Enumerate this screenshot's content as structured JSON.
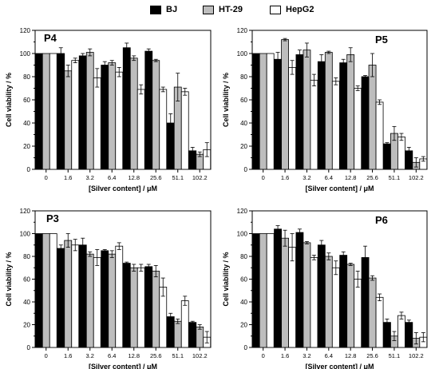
{
  "legend": [
    {
      "name": "BJ",
      "color": "#000000"
    },
    {
      "name": "HT-29",
      "color": "#bdbdbd"
    },
    {
      "name": "HepG2",
      "color": "#ffffff"
    }
  ],
  "chart_data": [
    {
      "type": "bar",
      "title": "P4",
      "xlabel": "[Silver content]  /  μM",
      "ylabel": "Cell viability  /  %",
      "ylim": [
        0,
        120
      ],
      "yticks": [
        0,
        20,
        40,
        60,
        80,
        100,
        120
      ],
      "categories": [
        "0",
        "1.6",
        "3.2",
        "6.4",
        "12.8",
        "25.6",
        "51.1",
        "102.2"
      ],
      "series": [
        {
          "name": "BJ",
          "values": [
            100,
            100,
            98,
            90,
            105,
            102,
            40,
            16
          ],
          "errors": [
            0,
            5,
            2,
            3,
            4,
            2,
            8,
            3
          ]
        },
        {
          "name": "HT-29",
          "values": [
            100,
            85,
            101,
            92,
            96,
            94,
            71,
            13
          ],
          "errors": [
            0,
            5,
            3,
            2,
            2,
            1,
            12,
            2
          ]
        },
        {
          "name": "HepG2",
          "values": [
            100,
            94,
            79,
            84,
            69,
            69,
            67,
            17
          ],
          "errors": [
            0,
            2,
            8,
            4,
            4,
            2,
            3,
            6
          ]
        }
      ]
    },
    {
      "type": "bar",
      "title": "P5",
      "xlabel": "[Silver content]  /  μM",
      "ylabel": "Cell viability  /  %",
      "ylim": [
        0,
        120
      ],
      "yticks": [
        0,
        20,
        40,
        60,
        80,
        100,
        120
      ],
      "categories": [
        "0",
        "1.6",
        "3.2",
        "6.4",
        "12.8",
        "25.6",
        "51.1",
        "102.2"
      ],
      "series": [
        {
          "name": "BJ",
          "values": [
            100,
            95,
            99,
            93,
            92,
            80,
            22,
            16
          ],
          "errors": [
            0,
            6,
            4,
            6,
            3,
            1,
            1,
            3
          ]
        },
        {
          "name": "HT-29",
          "values": [
            100,
            112,
            103,
            101,
            99,
            90,
            31,
            6
          ],
          "errors": [
            0,
            1,
            6,
            1,
            6,
            10,
            6,
            4
          ]
        },
        {
          "name": "HepG2",
          "values": [
            100,
            88,
            77,
            76,
            70,
            58,
            28,
            9
          ],
          "errors": [
            0,
            6,
            5,
            3,
            2,
            2,
            3,
            2
          ]
        }
      ]
    },
    {
      "type": "bar",
      "title": "P3",
      "xlabel": "[Silver content]  /  μM",
      "ylabel": "Cell viability  /  %",
      "ylim": [
        0,
        120
      ],
      "yticks": [
        0,
        20,
        40,
        60,
        80,
        100,
        120
      ],
      "categories": [
        "0",
        "1.6",
        "3.2",
        "6.4",
        "12.8",
        "25.6",
        "51.1",
        "102.2"
      ],
      "series": [
        {
          "name": "BJ",
          "values": [
            100,
            87,
            90,
            85,
            74,
            71,
            27,
            22
          ],
          "errors": [
            0,
            3,
            6,
            1,
            1,
            2,
            3,
            1
          ]
        },
        {
          "name": "HT-29",
          "values": [
            100,
            94,
            82,
            82,
            70,
            67,
            23,
            18
          ],
          "errors": [
            0,
            6,
            2,
            3,
            3,
            5,
            2,
            2
          ]
        },
        {
          "name": "HepG2",
          "values": [
            100,
            90,
            79,
            89,
            70,
            53,
            41,
            9
          ],
          "errors": [
            0,
            5,
            7,
            3,
            3,
            8,
            4,
            5
          ]
        }
      ]
    },
    {
      "type": "bar",
      "title": "P6",
      "xlabel": "[Silver content]  /  μM",
      "ylabel": "Cell viability  /  %",
      "ylim": [
        0,
        120
      ],
      "yticks": [
        0,
        20,
        40,
        60,
        80,
        100,
        120
      ],
      "categories": [
        "0",
        "1.6",
        "3.2",
        "6.4",
        "12.8",
        "25.6",
        "51.1",
        "102.2"
      ],
      "series": [
        {
          "name": "BJ",
          "values": [
            100,
            104,
            101,
            90,
            81,
            79,
            22,
            22
          ],
          "errors": [
            0,
            3,
            3,
            4,
            3,
            10,
            3,
            2
          ]
        },
        {
          "name": "HT-29",
          "values": [
            100,
            96,
            92,
            80,
            73,
            61,
            10,
            8
          ],
          "errors": [
            0,
            7,
            1,
            3,
            1,
            2,
            4,
            5
          ]
        },
        {
          "name": "HepG2",
          "values": [
            100,
            88,
            79,
            70,
            60,
            44,
            28,
            9
          ],
          "errors": [
            0,
            12,
            2,
            6,
            7,
            3,
            3,
            4
          ]
        }
      ]
    }
  ]
}
